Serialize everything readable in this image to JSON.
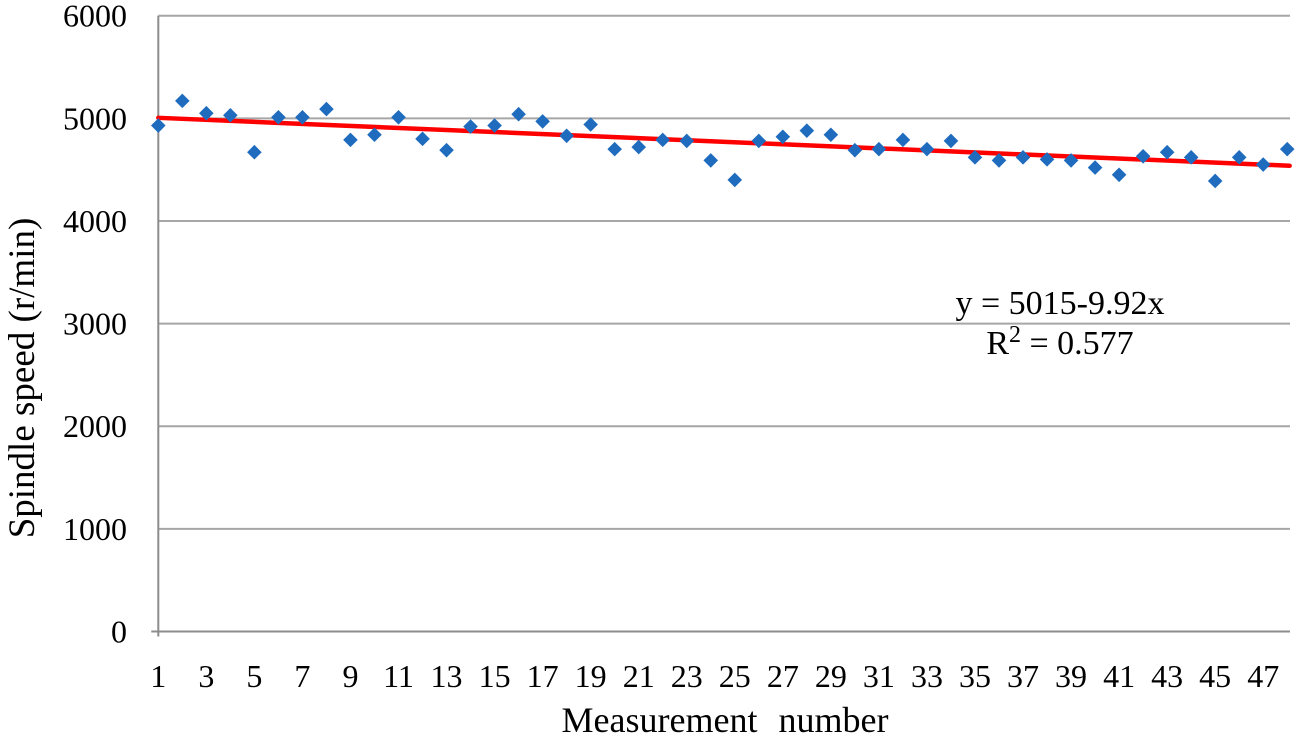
{
  "chart_data": {
    "type": "scatter",
    "title": "",
    "xlabel": "Measurement number",
    "ylabel": "Spindle speed (r/min)",
    "x": [
      1,
      2,
      3,
      4,
      5,
      6,
      7,
      8,
      9,
      10,
      11,
      12,
      13,
      14,
      15,
      16,
      17,
      18,
      19,
      20,
      21,
      22,
      23,
      24,
      25,
      26,
      27,
      28,
      29,
      30,
      31,
      32,
      33,
      34,
      35,
      36,
      37,
      38,
      39,
      40,
      41,
      42,
      43,
      44,
      45,
      46,
      47,
      48
    ],
    "series": [
      {
        "name": "Spindle speed",
        "values": [
          4930,
          5170,
          5050,
          5030,
          4670,
          5010,
          5010,
          5090,
          4790,
          4840,
          5010,
          4800,
          4690,
          4920,
          4930,
          5040,
          4970,
          4830,
          4940,
          4700,
          4720,
          4790,
          4780,
          4590,
          4400,
          4780,
          4820,
          4880,
          4840,
          4690,
          4700,
          4790,
          4700,
          4780,
          4620,
          4590,
          4620,
          4600,
          4590,
          4520,
          4450,
          4630,
          4670,
          4620,
          4390,
          4620,
          4550,
          4700
        ]
      }
    ],
    "marker": "diamond",
    "marker_color": "#1F6CBF",
    "trendline": {
      "equation_label": "y = 5015-9.92x",
      "r2_base": "R",
      "r2_sup": "2",
      "r2_value": " = 0.577",
      "intercept": 5015,
      "slope": -9.92,
      "color": "#FF0000"
    },
    "xlim": [
      1,
      48.1
    ],
    "ylim": [
      0,
      6000
    ],
    "y_ticks": [
      0,
      1000,
      2000,
      3000,
      4000,
      5000,
      6000
    ],
    "y_tick_labels": [
      "0",
      "1000",
      "2000",
      "3000",
      "4000",
      "5000",
      "6000"
    ],
    "x_tick_labels": [
      "1",
      "3",
      "5",
      "7",
      "9",
      "11",
      "13",
      "15",
      "17",
      "19",
      "21",
      "23",
      "25",
      "27",
      "29",
      "31",
      "33",
      "35",
      "37",
      "39",
      "41",
      "43",
      "45",
      "47"
    ],
    "grid": "horizontal",
    "legend": "none",
    "gridline_color": "#A6A6A6",
    "axis_color": "#8C8C8C",
    "text_color": "#000000",
    "background_color": "#FFFFFF"
  }
}
